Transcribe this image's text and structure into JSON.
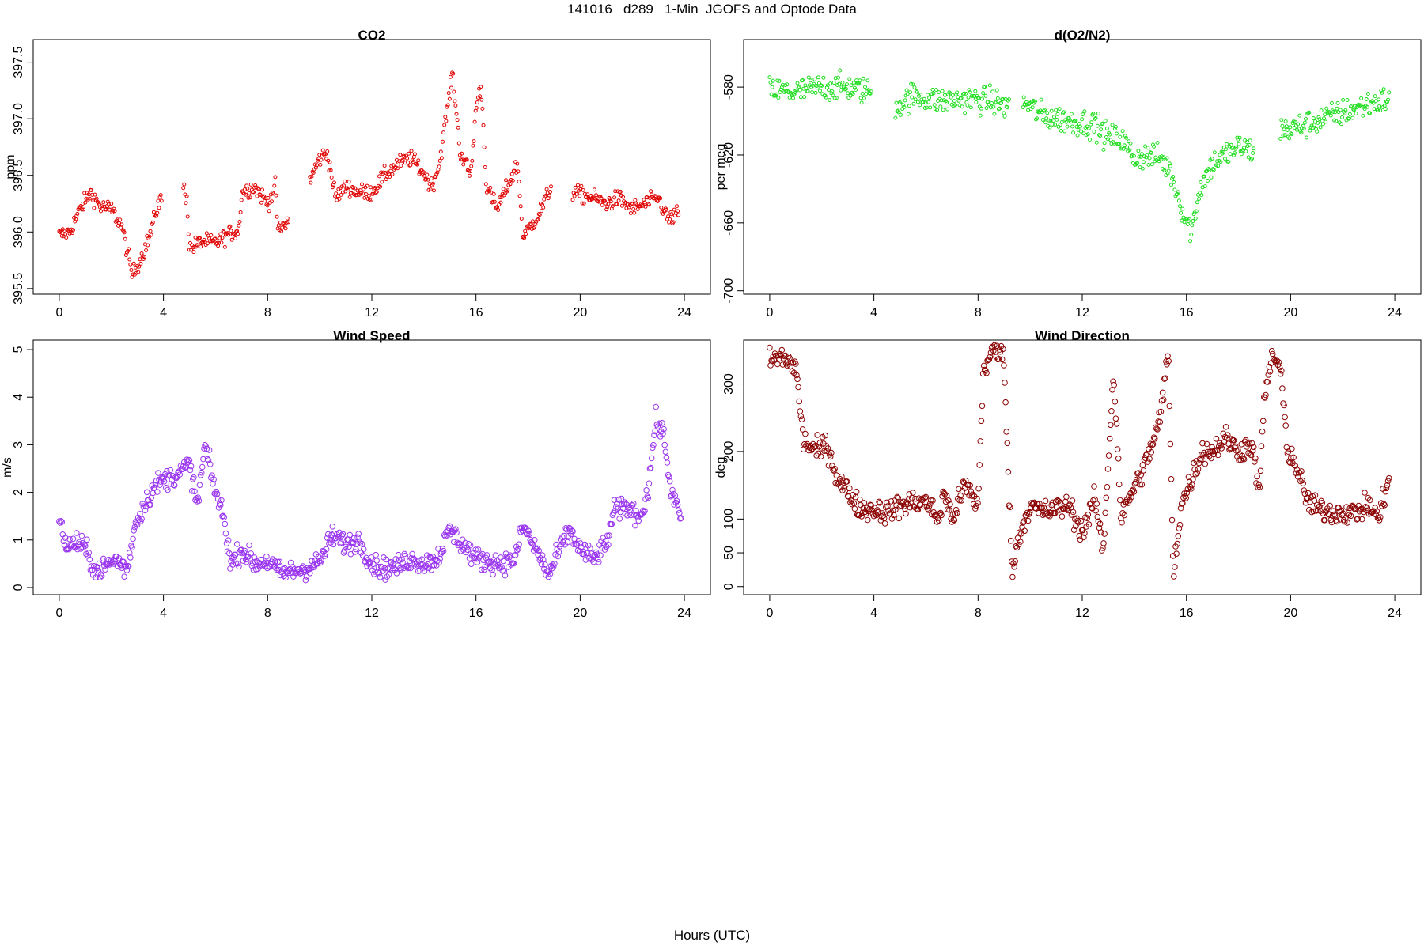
{
  "page": {
    "title": "141016   d289   1-Min  JGOFS and Optode Data",
    "footer": "Hours (UTC)"
  },
  "chart_data": [
    {
      "id": "co2",
      "type": "scatter",
      "title": "CO2",
      "xlabel": "",
      "ylabel": "ppm",
      "xlim": [
        -1,
        25
      ],
      "ylim": [
        395.45,
        397.7
      ],
      "xticks": [
        0,
        4,
        8,
        12,
        16,
        20,
        24
      ],
      "yticks": [
        395.5,
        396.0,
        396.5,
        397.0,
        397.5
      ],
      "ytick_labels": [
        "395.5",
        "396.0",
        "396.5",
        "397.0",
        "397.5"
      ],
      "color": "#e00000",
      "marker": "small-circle",
      "keyframes": [
        [
          0.0,
          395.97
        ],
        [
          0.4,
          396.0
        ],
        [
          0.8,
          396.2
        ],
        [
          1.2,
          396.35
        ],
        [
          1.6,
          396.22
        ],
        [
          2.0,
          396.2
        ],
        [
          2.4,
          396.05
        ],
        [
          2.8,
          395.62
        ],
        [
          3.1,
          395.75
        ],
        [
          3.5,
          395.98
        ],
        [
          3.8,
          396.25
        ],
        [
          3.95,
          396.3
        ],
        [
          4.75,
          396.4
        ],
        [
          4.9,
          396.3
        ],
        [
          5.0,
          395.85
        ],
        [
          5.5,
          395.92
        ],
        [
          6.0,
          395.9
        ],
        [
          6.5,
          395.98
        ],
        [
          6.9,
          396.02
        ],
        [
          7.0,
          396.35
        ],
        [
          7.5,
          396.4
        ],
        [
          8.0,
          396.25
        ],
        [
          8.3,
          396.4
        ],
        [
          8.4,
          396.0
        ],
        [
          8.8,
          396.1
        ],
        [
          9.6,
          396.45
        ],
        [
          10.0,
          396.65
        ],
        [
          10.3,
          396.7
        ],
        [
          10.6,
          396.3
        ],
        [
          11.0,
          396.4
        ],
        [
          11.5,
          396.35
        ],
        [
          12.0,
          396.35
        ],
        [
          12.5,
          396.5
        ],
        [
          13.0,
          396.6
        ],
        [
          13.5,
          396.65
        ],
        [
          13.9,
          396.55
        ],
        [
          14.3,
          396.4
        ],
        [
          14.6,
          396.6
        ],
        [
          14.9,
          397.1
        ],
        [
          15.1,
          397.4
        ],
        [
          15.4,
          396.7
        ],
        [
          15.8,
          396.5
        ],
        [
          16.0,
          397.1
        ],
        [
          16.2,
          397.3
        ],
        [
          16.4,
          396.4
        ],
        [
          16.8,
          396.2
        ],
        [
          17.2,
          396.4
        ],
        [
          17.6,
          396.6
        ],
        [
          17.8,
          395.95
        ],
        [
          18.4,
          396.15
        ],
        [
          18.9,
          396.4
        ],
        [
          19.7,
          396.35
        ],
        [
          20.5,
          396.3
        ],
        [
          21.0,
          396.25
        ],
        [
          21.5,
          396.3
        ],
        [
          22.0,
          396.2
        ],
        [
          22.5,
          396.25
        ],
        [
          23.0,
          396.3
        ],
        [
          23.4,
          396.1
        ],
        [
          23.8,
          396.18
        ]
      ],
      "gaps": [
        [
          3.95,
          4.75
        ],
        [
          8.8,
          9.6
        ],
        [
          18.9,
          19.7
        ]
      ],
      "noise": 0.06,
      "step_hours": 0.0333
    },
    {
      "id": "o2n2",
      "type": "scatter",
      "title": "d(O2/N2)",
      "xlabel": "",
      "ylabel": "per meg",
      "xlim": [
        -1,
        25
      ],
      "ylim": [
        -702,
        -552
      ],
      "xticks": [
        0,
        4,
        8,
        12,
        16,
        20,
        24
      ],
      "yticks": [
        -700,
        -660,
        -620,
        -580
      ],
      "ytick_labels": [
        "-700",
        "-660",
        "-620",
        "-580"
      ],
      "color": "#22dd22",
      "marker": "small-circle",
      "keyframes": [
        [
          0.0,
          -582
        ],
        [
          1.0,
          -583
        ],
        [
          2.0,
          -580
        ],
        [
          3.0,
          -580
        ],
        [
          3.9,
          -583
        ],
        [
          4.8,
          -592
        ],
        [
          5.5,
          -585
        ],
        [
          6.5,
          -588
        ],
        [
          7.5,
          -587
        ],
        [
          8.5,
          -588
        ],
        [
          9.2,
          -592
        ],
        [
          9.7,
          -588
        ],
        [
          10.5,
          -597
        ],
        [
          11.5,
          -600
        ],
        [
          12.5,
          -602
        ],
        [
          13.0,
          -610
        ],
        [
          13.5,
          -610
        ],
        [
          14.0,
          -622
        ],
        [
          14.5,
          -620
        ],
        [
          15.0,
          -622
        ],
        [
          15.4,
          -630
        ],
        [
          15.9,
          -655
        ],
        [
          16.2,
          -665
        ],
        [
          16.5,
          -640
        ],
        [
          17.0,
          -625
        ],
        [
          17.5,
          -620
        ],
        [
          18.0,
          -615
        ],
        [
          18.6,
          -618
        ],
        [
          19.6,
          -605
        ],
        [
          20.0,
          -605
        ],
        [
          21.0,
          -600
        ],
        [
          22.0,
          -595
        ],
        [
          23.0,
          -590
        ],
        [
          23.8,
          -587
        ]
      ],
      "gaps": [
        [
          3.9,
          4.8
        ],
        [
          9.2,
          9.7
        ],
        [
          18.6,
          19.6
        ]
      ],
      "noise": 6.5,
      "step_hours": 0.0333
    },
    {
      "id": "wind-speed",
      "type": "scatter",
      "title": "Wind Speed",
      "xlabel": "",
      "ylabel": "m/s",
      "xlim": [
        -1,
        25
      ],
      "ylim": [
        -0.15,
        5.2
      ],
      "xticks": [
        0,
        4,
        8,
        12,
        16,
        20,
        24
      ],
      "yticks": [
        0,
        1,
        2,
        3,
        4,
        5
      ],
      "ytick_labels": [
        "0",
        "1",
        "2",
        "3",
        "4",
        "5"
      ],
      "color": "#9933ee",
      "marker": "circle",
      "keyframes": [
        [
          0.0,
          1.4
        ],
        [
          0.3,
          0.85
        ],
        [
          0.7,
          0.95
        ],
        [
          1.0,
          0.8
        ],
        [
          1.4,
          0.35
        ],
        [
          1.8,
          0.45
        ],
        [
          2.2,
          0.6
        ],
        [
          2.6,
          0.35
        ],
        [
          2.9,
          1.3
        ],
        [
          3.3,
          1.8
        ],
        [
          3.8,
          2.2
        ],
        [
          4.2,
          2.3
        ],
        [
          4.6,
          2.4
        ],
        [
          5.0,
          2.6
        ],
        [
          5.3,
          1.7
        ],
        [
          5.6,
          3.0
        ],
        [
          5.9,
          2.2
        ],
        [
          6.3,
          1.5
        ],
        [
          6.6,
          0.5
        ],
        [
          7.0,
          0.8
        ],
        [
          7.5,
          0.5
        ],
        [
          8.0,
          0.55
        ],
        [
          8.5,
          0.3
        ],
        [
          9.0,
          0.35
        ],
        [
          9.5,
          0.4
        ],
        [
          10.0,
          0.55
        ],
        [
          10.5,
          1.1
        ],
        [
          11.0,
          0.9
        ],
        [
          11.5,
          1.0
        ],
        [
          12.0,
          0.5
        ],
        [
          12.5,
          0.4
        ],
        [
          13.0,
          0.45
        ],
        [
          13.5,
          0.6
        ],
        [
          14.0,
          0.5
        ],
        [
          14.5,
          0.6
        ],
        [
          15.0,
          1.2
        ],
        [
          15.5,
          0.9
        ],
        [
          16.0,
          0.6
        ],
        [
          16.5,
          0.55
        ],
        [
          17.0,
          0.5
        ],
        [
          17.5,
          0.6
        ],
        [
          17.8,
          1.3
        ],
        [
          18.2,
          0.9
        ],
        [
          18.5,
          0.6
        ],
        [
          18.8,
          0.25
        ],
        [
          19.2,
          0.8
        ],
        [
          19.6,
          1.2
        ],
        [
          20.0,
          0.8
        ],
        [
          20.5,
          0.6
        ],
        [
          21.0,
          0.9
        ],
        [
          21.3,
          1.6
        ],
        [
          21.8,
          1.7
        ],
        [
          22.3,
          1.5
        ],
        [
          22.6,
          2.0
        ],
        [
          22.9,
          3.5
        ],
        [
          23.2,
          3.2
        ],
        [
          23.5,
          2.0
        ],
        [
          23.9,
          1.4
        ]
      ],
      "gaps": [],
      "noise": 0.18,
      "step_hours": 0.0333
    },
    {
      "id": "wind-direction",
      "type": "scatter",
      "title": "Wind Direction",
      "xlabel": "",
      "ylabel": "deg",
      "xlim": [
        -1,
        25
      ],
      "ylim": [
        -12,
        365
      ],
      "xticks": [
        0,
        4,
        8,
        12,
        16,
        20,
        24
      ],
      "yticks": [
        0,
        50,
        100,
        200,
        300
      ],
      "ytick_labels": [
        "0",
        "50",
        "100",
        "200",
        "300"
      ],
      "color": "#8b0000",
      "marker": "circle",
      "keyframes": [
        [
          0.0,
          335
        ],
        [
          0.5,
          340
        ],
        [
          1.0,
          325
        ],
        [
          1.3,
          215
        ],
        [
          1.8,
          200
        ],
        [
          2.2,
          210
        ],
        [
          2.6,
          160
        ],
        [
          3.0,
          140
        ],
        [
          3.5,
          115
        ],
        [
          4.0,
          115
        ],
        [
          4.5,
          110
        ],
        [
          5.0,
          120
        ],
        [
          5.5,
          125
        ],
        [
          6.0,
          125
        ],
        [
          6.5,
          100
        ],
        [
          6.7,
          140
        ],
        [
          7.0,
          100
        ],
        [
          7.5,
          150
        ],
        [
          8.0,
          120
        ],
        [
          8.2,
          320
        ],
        [
          8.6,
          350
        ],
        [
          9.0,
          340
        ],
        [
          9.3,
          20
        ],
        [
          9.6,
          80
        ],
        [
          10.0,
          120
        ],
        [
          10.5,
          110
        ],
        [
          11.0,
          115
        ],
        [
          11.5,
          120
        ],
        [
          12.0,
          80
        ],
        [
          12.5,
          130
        ],
        [
          12.8,
          50
        ],
        [
          13.2,
          320
        ],
        [
          13.5,
          100
        ],
        [
          13.9,
          140
        ],
        [
          14.3,
          170
        ],
        [
          14.6,
          200
        ],
        [
          15.0,
          250
        ],
        [
          15.3,
          350
        ],
        [
          15.5,
          20
        ],
        [
          15.8,
          120
        ],
        [
          16.2,
          160
        ],
        [
          16.6,
          200
        ],
        [
          17.0,
          200
        ],
        [
          17.5,
          220
        ],
        [
          18.0,
          200
        ],
        [
          18.5,
          210
        ],
        [
          18.8,
          140
        ],
        [
          19.0,
          280
        ],
        [
          19.3,
          345
        ],
        [
          19.6,
          320
        ],
        [
          19.9,
          200
        ],
        [
          20.2,
          180
        ],
        [
          20.6,
          130
        ],
        [
          21.0,
          115
        ],
        [
          21.5,
          110
        ],
        [
          22.0,
          110
        ],
        [
          22.5,
          110
        ],
        [
          23.0,
          120
        ],
        [
          23.4,
          100
        ],
        [
          23.8,
          170
        ]
      ],
      "gaps": [],
      "noise": 14,
      "step_hours": 0.0333
    }
  ]
}
